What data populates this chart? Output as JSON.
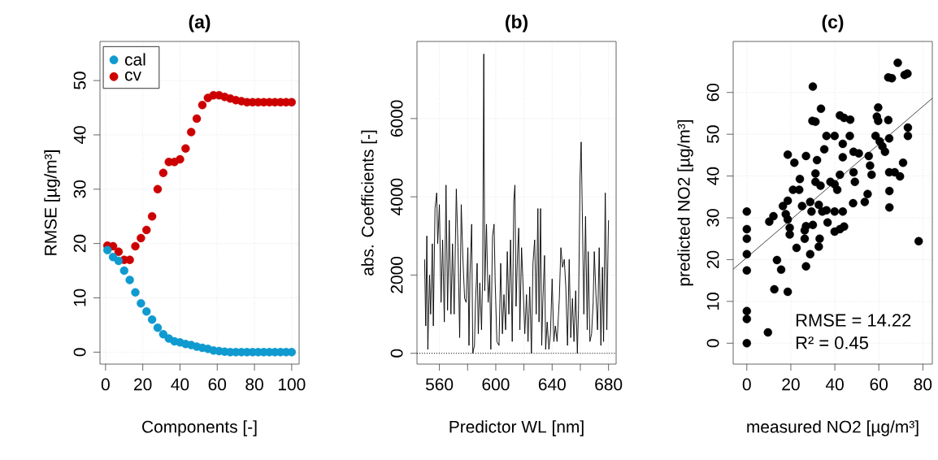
{
  "chart_data": [
    {
      "type": "scatter",
      "title": "(a)",
      "xlabel": "Components [-]",
      "ylabel": "RMSE [µg/m³]",
      "xlim": [
        -3,
        104
      ],
      "ylim": [
        -2.2,
        57.2
      ],
      "xticks": [
        0,
        20,
        40,
        60,
        80,
        100
      ],
      "yticks": [
        0,
        10,
        20,
        30,
        40,
        50
      ],
      "grid": true,
      "legend": "top left",
      "marker": "circle",
      "series": [
        {
          "name": "cal",
          "color": "#0f9ad0",
          "x": [
            1,
            4,
            7,
            10,
            13,
            16,
            19,
            22,
            25,
            28,
            31,
            34,
            37,
            40,
            43,
            46,
            49,
            52,
            55,
            58,
            61,
            64,
            67,
            70,
            73,
            76,
            79,
            82,
            85,
            88,
            91,
            94,
            97,
            100
          ],
          "values": [
            18.8,
            17.5,
            16.8,
            15,
            13.3,
            11,
            9,
            7.5,
            6,
            4.5,
            3.3,
            2.5,
            2,
            1.8,
            1.5,
            1.3,
            1,
            0.8,
            0.6,
            0.3,
            0.2,
            0.1,
            0,
            0,
            0,
            0,
            0,
            0,
            0,
            0,
            0,
            0,
            0,
            0
          ]
        },
        {
          "name": "cv",
          "color": "#cc0000",
          "x": [
            1,
            4,
            7,
            10,
            13,
            16,
            19,
            22,
            25,
            28,
            31,
            34,
            37,
            40,
            43,
            46,
            49,
            52,
            55,
            58,
            61,
            64,
            67,
            70,
            73,
            76,
            79,
            82,
            85,
            88,
            91,
            94,
            97,
            100
          ],
          "values": [
            19.6,
            19.5,
            18.5,
            17,
            17,
            19.5,
            21,
            22.5,
            25,
            30,
            33,
            35,
            35,
            35.5,
            37.5,
            40.5,
            43,
            45.5,
            46.8,
            47.3,
            47.3,
            47,
            46.7,
            46.4,
            46.2,
            46,
            46,
            46,
            46,
            46,
            46,
            46,
            46,
            46
          ]
        }
      ]
    },
    {
      "type": "line",
      "title": "(b)",
      "xlabel": "Predictor WL [nm]",
      "ylabel": "abs. Coefficients [-]",
      "xlim": [
        544.1,
        685.4
      ],
      "ylim": [
        -276,
        7970
      ],
      "xticks": [
        560,
        {
          "value": 580,
          "label": null
        },
        600,
        {
          "value": 620,
          "label": null
        },
        640,
        {
          "value": 660,
          "label": null
        },
        680
      ],
      "yticks": [
        0,
        2000,
        4000,
        6000
      ],
      "grid": true,
      "line_style": "solid",
      "ref_lines": [
        {
          "axis": "y",
          "value": 0,
          "line_style": "dotted",
          "color": "#000000"
        }
      ],
      "series": [
        {
          "color": "#000000",
          "x": [
            549.5,
            550.3,
            551.1,
            551.8,
            553.0,
            553.8,
            555.0,
            555.7,
            556.9,
            558.1,
            558.8,
            560.0,
            561.2,
            562.3,
            563.5,
            564.7,
            565.8,
            567.0,
            568.2,
            569.3,
            570.5,
            572.0,
            573.2,
            574.4,
            575.5,
            576.7,
            577.9,
            579.0,
            580.2,
            581.0,
            581.7,
            582.9,
            583.7,
            584.9,
            585.6,
            586.8,
            587.6,
            588.7,
            589.9,
            590.7,
            591.5,
            592.2,
            593.4,
            594.6,
            595.7,
            596.5,
            597.7,
            598.8,
            599.6,
            600.8,
            602.3,
            603.5,
            604.7,
            605.8,
            607.0,
            608.2,
            609.3,
            610.5,
            611.7,
            612.8,
            613.6,
            614.4,
            615.5,
            616.3,
            617.1,
            618.3,
            619.4,
            620.6,
            621.8,
            622.9,
            624.1,
            625.3,
            626.4,
            627.6,
            628.7,
            629.9,
            630.7,
            631.8,
            632.6,
            633.4,
            634.6,
            635.4,
            636.5,
            637.7,
            638.8,
            640.0,
            641.2,
            642.3,
            643.5,
            645.1,
            646.2,
            647.4,
            648.6,
            649.7,
            650.9,
            652.1,
            653.2,
            654.4,
            655.5,
            656.7,
            657.9,
            658.7,
            659.8,
            660.6,
            661.4,
            662.5,
            663.7,
            664.9,
            665.6,
            666.8,
            668.0,
            669.1,
            669.9,
            671.1,
            672.2,
            673.4,
            674.6,
            675.7,
            676.5,
            677.7,
            678.8,
            679.6,
            680.0
          ],
          "values": [
            2400,
            700,
            3000,
            100,
            2000,
            1000,
            2800,
            700,
            3700,
            4100,
            2800,
            3800,
            1300,
            2900,
            800,
            4300,
            1100,
            3400,
            1000,
            2800,
            1000,
            4200,
            2700,
            400,
            3800,
            2400,
            1400,
            1300,
            2700,
            200,
            2000,
            3300,
            0,
            200,
            1300,
            2300,
            500,
            1800,
            600,
            2000,
            7650,
            1600,
            3300,
            1300,
            2000,
            100,
            3000,
            3300,
            1800,
            300,
            200,
            2300,
            500,
            1500,
            600,
            2600,
            1000,
            2900,
            300,
            3900,
            4300,
            1200,
            2600,
            3200,
            600,
            2700,
            1700,
            500,
            1500,
            300,
            1700,
            0,
            2300,
            2900,
            1000,
            3700,
            800,
            3700,
            200,
            1300,
            2500,
            100,
            800,
            100,
            500,
            1900,
            300,
            700,
            300,
            1400,
            2700,
            2200,
            2400,
            1700,
            200,
            2400,
            400,
            1400,
            300,
            1600,
            0,
            1100,
            4500,
            5400,
            3600,
            1000,
            3500,
            600,
            2600,
            300,
            500,
            1300,
            2600,
            1500,
            600,
            2700,
            200,
            2200,
            300,
            4100,
            600,
            2600,
            3400
          ]
        }
      ]
    },
    {
      "type": "scatter",
      "title": "(c)",
      "xlabel": "measured NO2 [µg/m³]",
      "ylabel": "predicted NO2 [µg/m³]",
      "xlim": [
        -6.2,
        84.3
      ],
      "ylim": [
        -5,
        72.2
      ],
      "xticks": [
        0,
        20,
        40,
        60,
        80
      ],
      "yticks": [
        0,
        10,
        20,
        30,
        40,
        50,
        60
      ],
      "grid": true,
      "annotations": [
        "RMSE = 14.22",
        "R² =  0.45"
      ],
      "series": [
        {
          "color": "#000000",
          "marker": "circle",
          "x": [
            0,
            0,
            0,
            0,
            0,
            0,
            0,
            0,
            9.6,
            12.5,
            13.7,
            15.6,
            18.6,
            10.2,
            12.1,
            16.4,
            18.6,
            17.7,
            18.6,
            19.5,
            19.5,
            18.6,
            21.6,
            22.6,
            21,
            23.8,
            24.1,
            26.9,
            26.9,
            28.8,
            26.3,
            26.3,
            26.9,
            30,
            25.1,
            28.8,
            29.4,
            30,
            29.8,
            31.2,
            33.7,
            31.9,
            31.2,
            31.2,
            33.5,
            32.7,
            34.3,
            33.1,
            32.7,
            36.7,
            36.2,
            35.2,
            36.2,
            39.9,
            38,
            39.9,
            41.1,
            39.9,
            39.9,
            42.3,
            44.2,
            43.6,
            42.3,
            43.6,
            43.6,
            42.3,
            44.2,
            47,
            46.8,
            48.5,
            50.9,
            48.5,
            49.1,
            48.3,
            53.6,
            54.9,
            55.4,
            56,
            56.7,
            58.5,
            59.1,
            59.7,
            59.7,
            60.4,
            61.6,
            62.8,
            64.3,
            65.9,
            68.6,
            71.7,
            73,
            64.3,
            64.7,
            64.7,
            67.2,
            69.6,
            71,
            73.2,
            73.2,
            64.8,
            64.8,
            78.1
          ],
          "values": [
            31.5,
            27.3,
            25,
            21.3,
            17.4,
            7.7,
            5.8,
            0,
            2.6,
            12.9,
            19.9,
            17.6,
            12.3,
            29.1,
            30.4,
            32.8,
            34.1,
            30.9,
            29.6,
            27.6,
            26,
            45.1,
            43.2,
            22.8,
            36.7,
            36.7,
            39.3,
            44.8,
            18.4,
            21.3,
            25,
            27,
            28,
            28.3,
            32.8,
            33.8,
            31.5,
            61.4,
            53.2,
            53,
            56.1,
            43.8,
            40.6,
            38.6,
            37.7,
            33.1,
            31.5,
            25,
            23.1,
            28.9,
            31.8,
            46.4,
            49.6,
            49.6,
            38.6,
            38,
            36.7,
            31.5,
            26.7,
            27.3,
            27.9,
            31.5,
            40.3,
            47.7,
            44.5,
            54.5,
            53.9,
            53.5,
            49.6,
            45.8,
            45.4,
            40.9,
            38.6,
            33.5,
            33.8,
            35.7,
            44.8,
            42.5,
            40.3,
            49.6,
            54.2,
            56.4,
            53.2,
            48.3,
            47.1,
            45.8,
            63.6,
            63.4,
            67.1,
            64.2,
            64.5,
            53.4,
            49,
            40.9,
            40.9,
            39.9,
            43.2,
            51.6,
            49.6,
            36.4,
            32.5,
            24.4
          ]
        },
        {
          "type": "line",
          "color": "#333333",
          "x": [
            -6.2,
            84.3
          ],
          "values": [
            17.7,
            58.6
          ]
        }
      ]
    }
  ]
}
